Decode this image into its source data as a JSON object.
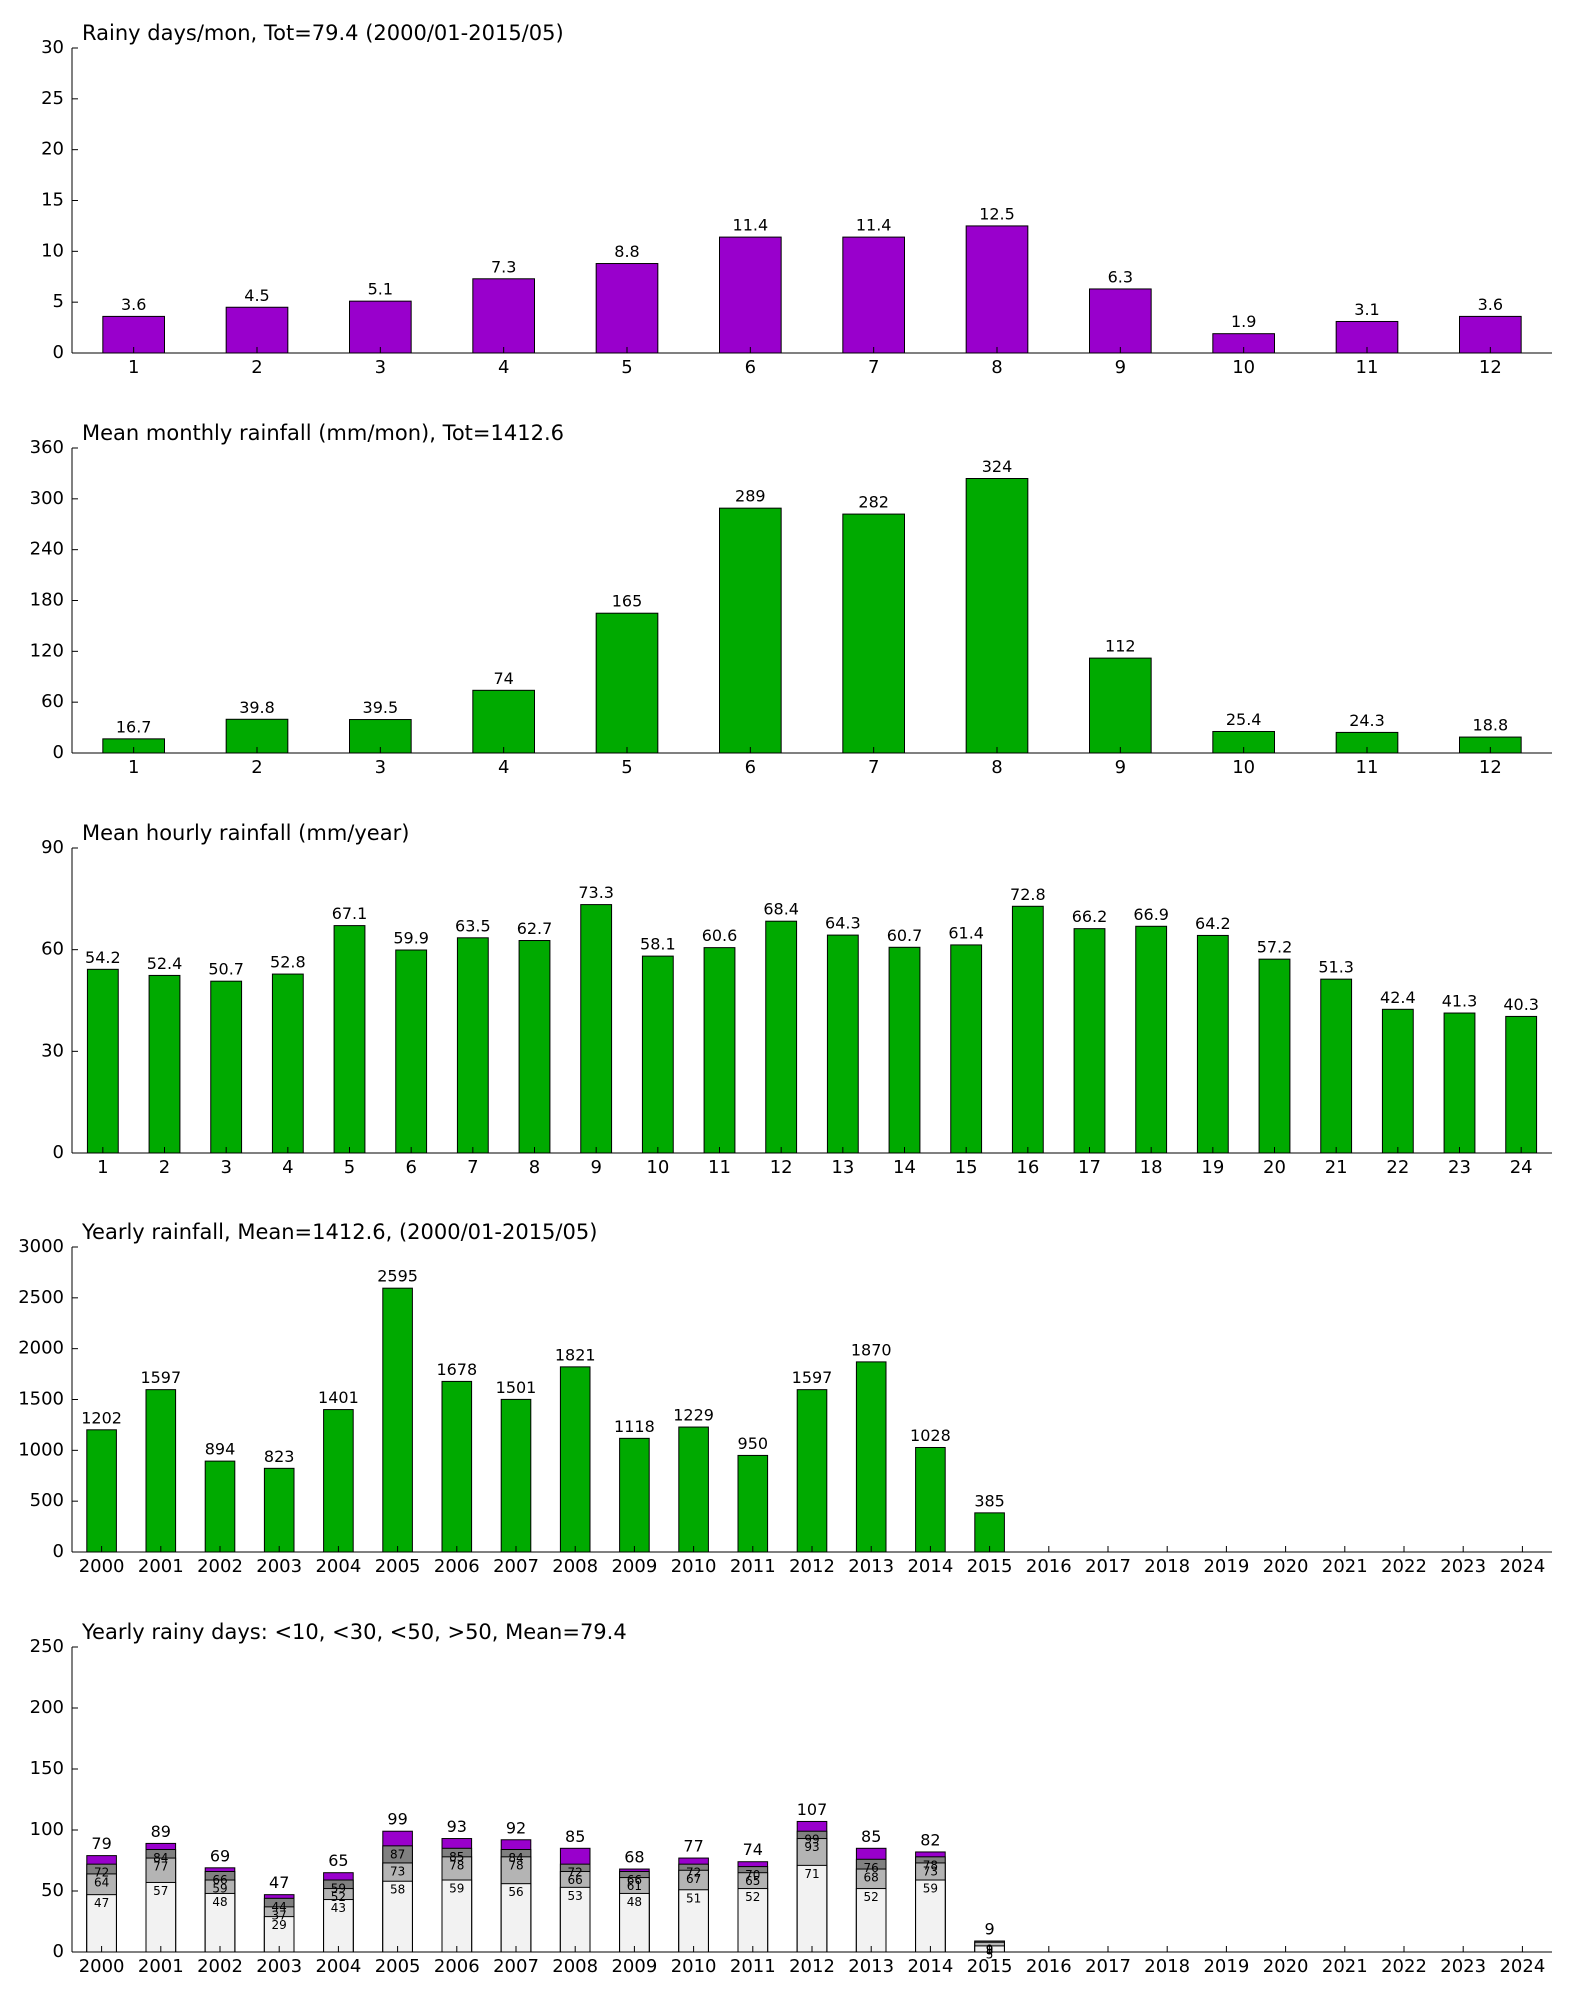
{
  "chart_data": [
    {
      "type": "bar",
      "title": "Rainy days/mon, Tot=79.4 (2000/01-2015/05)",
      "categories": [
        "1",
        "2",
        "3",
        "4",
        "5",
        "6",
        "7",
        "8",
        "9",
        "10",
        "11",
        "12"
      ],
      "values": [
        3.6,
        4.5,
        5.1,
        7.3,
        8.8,
        11.4,
        11.4,
        12.5,
        6.3,
        1.9,
        3.1,
        3.6
      ],
      "color": "#9900cc",
      "ylim": [
        0,
        30
      ],
      "yticks": [
        0,
        5,
        10,
        15,
        20,
        25,
        30
      ]
    },
    {
      "type": "bar",
      "title": "Mean monthly rainfall (mm/mon), Tot=1412.6",
      "categories": [
        "1",
        "2",
        "3",
        "4",
        "5",
        "6",
        "7",
        "8",
        "9",
        "10",
        "11",
        "12"
      ],
      "values": [
        16.7,
        39.8,
        39.5,
        74,
        165,
        289,
        282,
        324,
        112,
        25.4,
        24.3,
        18.8
      ],
      "color": "#00aa00",
      "ylim": [
        0,
        360
      ],
      "yticks": [
        0,
        60,
        120,
        180,
        240,
        300,
        360
      ]
    },
    {
      "type": "bar",
      "title": "Mean hourly rainfall (mm/year)",
      "categories": [
        "1",
        "2",
        "3",
        "4",
        "5",
        "6",
        "7",
        "8",
        "9",
        "10",
        "11",
        "12",
        "13",
        "14",
        "15",
        "16",
        "17",
        "18",
        "19",
        "20",
        "21",
        "22",
        "23",
        "24"
      ],
      "values": [
        54.2,
        52.4,
        50.7,
        52.8,
        67.1,
        59.9,
        63.5,
        62.7,
        73.3,
        58.1,
        60.6,
        68.4,
        64.3,
        60.7,
        61.4,
        72.8,
        66.2,
        66.9,
        64.2,
        57.2,
        51.3,
        42.4,
        41.3,
        40.3
      ],
      "color": "#00aa00",
      "ylim": [
        0,
        90
      ],
      "yticks": [
        0,
        30,
        60,
        90
      ]
    },
    {
      "type": "bar",
      "title": "Yearly rainfall, Mean=1412.6, (2000/01-2015/05)",
      "categories": [
        "2000",
        "2001",
        "2002",
        "2003",
        "2004",
        "2005",
        "2006",
        "2007",
        "2008",
        "2009",
        "2010",
        "2011",
        "2012",
        "2013",
        "2014",
        "2015",
        "2016",
        "2017",
        "2018",
        "2019",
        "2020",
        "2021",
        "2022",
        "2023",
        "2024"
      ],
      "values": [
        1202,
        1597,
        894,
        823,
        1401,
        2595,
        1678,
        1501,
        1821,
        1118,
        1229,
        950,
        1597,
        1870,
        1028,
        385,
        null,
        null,
        null,
        null,
        null,
        null,
        null,
        null,
        null
      ],
      "color": "#00aa00",
      "ylim": [
        0,
        3000
      ],
      "yticks": [
        0,
        500,
        1000,
        1500,
        2000,
        2500,
        3000
      ]
    },
    {
      "type": "overlap-bar",
      "title": "Yearly rainy days: <10, <30, <50, >50, Mean=79.4",
      "categories": [
        "2000",
        "2001",
        "2002",
        "2003",
        "2004",
        "2005",
        "2006",
        "2007",
        "2008",
        "2009",
        "2010",
        "2011",
        "2012",
        "2013",
        "2014",
        "2015",
        "2016",
        "2017",
        "2018",
        "2019",
        "2020",
        "2021",
        "2022",
        "2023",
        "2024"
      ],
      "series": [
        {
          "color": "#f2f2f2",
          "values": [
            47,
            57,
            48,
            29,
            43,
            58,
            59,
            56,
            53,
            48,
            51,
            52,
            71,
            52,
            59,
            5,
            null,
            null,
            null,
            null,
            null,
            null,
            null,
            null,
            null
          ]
        },
        {
          "color": "#b4b4b4",
          "values": [
            64,
            77,
            59,
            37,
            52,
            73,
            78,
            78,
            66,
            61,
            67,
            65,
            93,
            68,
            73,
            8,
            null,
            null,
            null,
            null,
            null,
            null,
            null,
            null,
            null
          ]
        },
        {
          "color": "#808080",
          "values": [
            72,
            84,
            66,
            44,
            59,
            87,
            85,
            84,
            72,
            66,
            72,
            70,
            99,
            76,
            78,
            9,
            null,
            null,
            null,
            null,
            null,
            null,
            null,
            null,
            null
          ]
        },
        {
          "color": "#9900cc",
          "values": [
            79,
            89,
            69,
            47,
            65,
            99,
            93,
            92,
            85,
            68,
            77,
            74,
            107,
            85,
            82,
            9,
            null,
            null,
            null,
            null,
            null,
            null,
            null,
            null,
            null
          ]
        }
      ],
      "ylim": [
        0,
        250
      ],
      "yticks": [
        0,
        50,
        100,
        150,
        200,
        250
      ]
    }
  ]
}
